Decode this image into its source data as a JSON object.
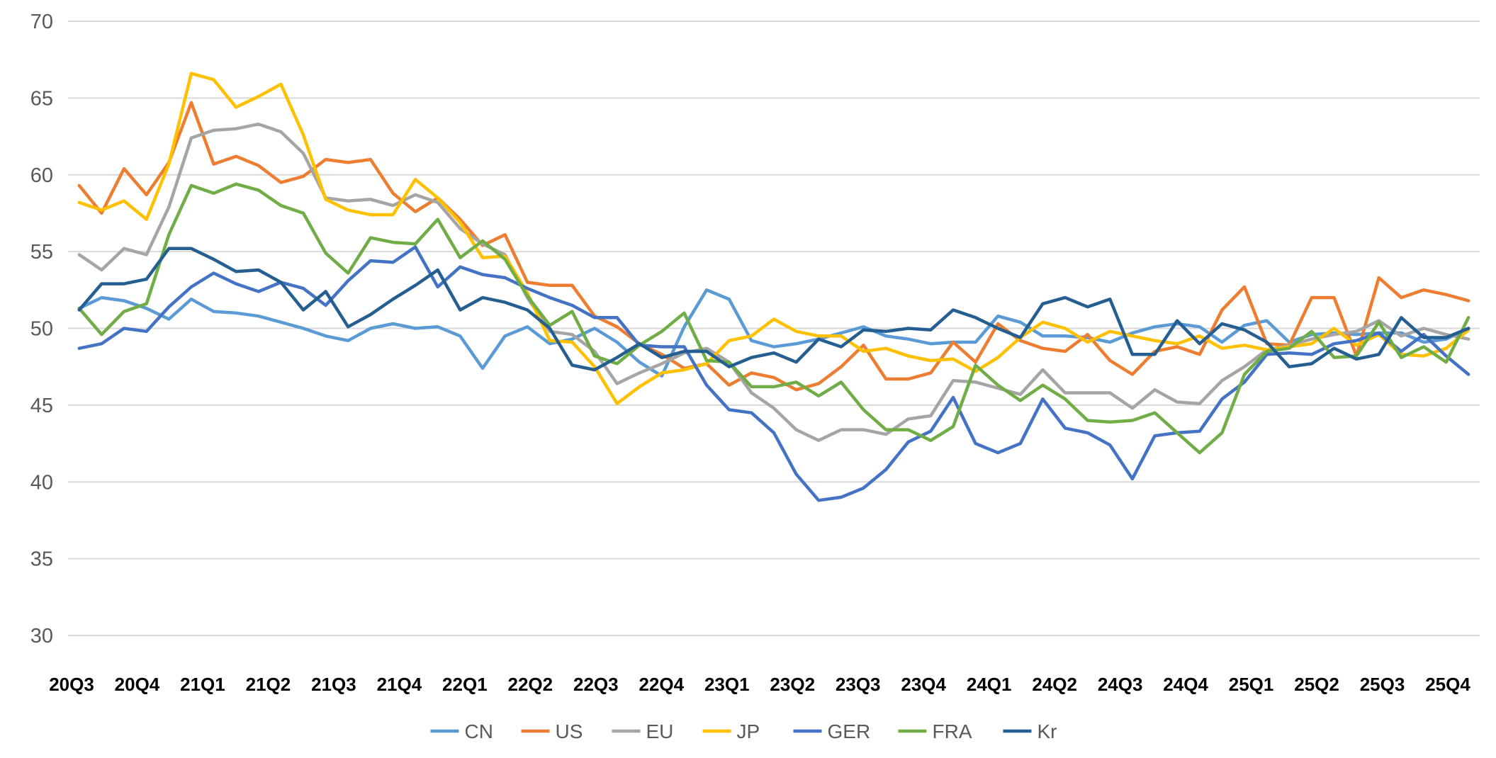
{
  "chart_data": {
    "type": "line",
    "title": "",
    "xlabel": "",
    "ylabel": "",
    "ylim": [
      30,
      70
    ],
    "yticks": [
      30,
      35,
      40,
      45,
      50,
      55,
      60,
      65,
      70
    ],
    "grid": true,
    "legend_position": "bottom",
    "x_tick_labels": [
      "20Q3",
      "20Q4",
      "21Q1",
      "21Q2",
      "21Q3",
      "21Q4",
      "22Q1",
      "22Q2",
      "22Q3",
      "22Q4",
      "23Q1",
      "23Q2",
      "23Q3",
      "23Q4",
      "24Q1",
      "24Q2",
      "24Q3",
      "24Q4",
      "25Q1",
      "25Q2",
      "25Q3",
      "25Q4"
    ],
    "series": [
      {
        "name": "CN",
        "color": "#5B9BD5",
        "values": [
          51.3,
          52.0,
          51.8,
          51.3,
          50.6,
          51.9,
          51.1,
          51.0,
          50.8,
          50.4,
          50.0,
          49.5,
          49.2,
          50.0,
          50.3,
          50.0,
          50.1,
          49.5,
          47.4,
          49.5,
          50.1,
          49.0,
          49.3,
          50.0,
          49.1,
          47.8,
          46.9,
          50.1,
          52.5,
          51.9,
          49.2,
          48.8,
          49.0,
          49.3,
          49.7,
          50.1,
          49.5,
          49.3,
          49.0,
          49.1,
          49.1,
          50.8,
          50.4,
          49.5,
          49.5,
          49.4,
          49.1,
          49.7,
          50.1,
          50.3,
          50.1,
          49.1,
          50.2,
          50.5,
          49.1,
          49.6,
          49.7,
          49.6,
          49.7,
          49.7,
          49.1,
          49.3,
          50.0
        ]
      },
      {
        "name": "US",
        "color": "#ED7D31",
        "values": [
          59.3,
          57.5,
          60.4,
          58.7,
          60.8,
          64.7,
          60.7,
          61.2,
          60.6,
          59.5,
          59.9,
          61.0,
          60.8,
          61.0,
          58.8,
          57.6,
          58.5,
          57.1,
          55.4,
          56.1,
          53.0,
          52.8,
          52.8,
          50.8,
          50.1,
          49.0,
          48.3,
          47.4,
          47.7,
          46.3,
          47.1,
          46.8,
          46.0,
          46.4,
          47.5,
          48.9,
          46.7,
          46.7,
          47.1,
          49.1,
          47.8,
          50.3,
          49.2,
          48.7,
          48.5,
          49.6,
          47.9,
          47.0,
          48.5,
          48.8,
          48.3,
          51.2,
          52.7,
          49.0,
          48.9,
          52.0,
          52.0,
          48.2,
          53.3,
          52.0,
          52.5,
          52.2,
          51.8
        ]
      },
      {
        "name": "EU",
        "color": "#A5A5A5",
        "values": [
          54.8,
          53.8,
          55.2,
          54.8,
          57.9,
          62.4,
          62.9,
          63.0,
          63.3,
          62.8,
          61.4,
          58.5,
          58.3,
          58.4,
          58.0,
          58.7,
          58.2,
          56.5,
          55.5,
          54.8,
          52.0,
          49.8,
          49.6,
          48.5,
          46.4,
          47.1,
          47.7,
          48.4,
          48.7,
          47.8,
          45.8,
          44.8,
          43.4,
          42.7,
          43.4,
          43.4,
          43.1,
          44.1,
          44.3,
          46.6,
          46.5,
          46.1,
          45.7,
          47.3,
          45.8,
          45.8,
          45.8,
          44.8,
          46.0,
          45.2,
          45.1,
          46.6,
          47.5,
          48.6,
          48.9,
          49.3,
          49.6,
          49.8,
          50.5,
          49.5,
          50.0,
          49.6,
          49.3
        ]
      },
      {
        "name": "JP",
        "color": "#FFC000",
        "values": [
          58.2,
          57.7,
          58.3,
          57.1,
          60.7,
          66.6,
          66.2,
          64.4,
          65.1,
          65.9,
          62.6,
          58.4,
          57.7,
          57.4,
          57.4,
          59.7,
          58.5,
          56.9,
          54.6,
          54.7,
          52.3,
          49.2,
          49.1,
          47.5,
          45.1,
          46.2,
          47.1,
          47.3,
          47.7,
          49.2,
          49.5,
          50.6,
          49.8,
          49.5,
          49.5,
          48.5,
          48.7,
          48.2,
          47.9,
          48.0,
          47.2,
          48.1,
          49.4,
          50.4,
          50.0,
          49.1,
          49.8,
          49.5,
          49.2,
          49.0,
          49.5,
          48.7,
          48.9,
          48.6,
          48.8,
          49.0,
          50.0,
          48.9,
          49.6,
          48.3,
          48.2,
          48.7,
          49.9
        ]
      },
      {
        "name": "GER",
        "color": "#4472C4",
        "values": [
          48.7,
          49.0,
          50.0,
          49.8,
          51.4,
          52.7,
          53.6,
          52.9,
          52.4,
          53.0,
          52.6,
          51.5,
          53.1,
          54.4,
          54.3,
          55.3,
          52.7,
          54.0,
          53.5,
          53.3,
          52.6,
          52.0,
          51.5,
          50.7,
          50.7,
          48.9,
          48.8,
          48.8,
          46.3,
          44.7,
          44.5,
          43.2,
          40.5,
          38.8,
          39.0,
          39.6,
          40.8,
          42.6,
          43.3,
          45.5,
          42.5,
          41.9,
          42.5,
          45.4,
          43.5,
          43.2,
          42.4,
          40.2,
          43.0,
          43.2,
          43.3,
          45.4,
          46.5,
          48.3,
          48.4,
          48.3,
          49.0,
          49.2,
          49.7,
          48.5,
          49.6,
          48.2,
          47.0
        ]
      },
      {
        "name": "FRA",
        "color": "#70AD47",
        "values": [
          51.3,
          49.6,
          51.1,
          51.6,
          56.1,
          59.3,
          58.8,
          59.4,
          59.0,
          58.0,
          57.5,
          54.9,
          53.6,
          55.9,
          55.6,
          55.5,
          57.1,
          54.6,
          55.7,
          54.5,
          52.1,
          50.2,
          51.1,
          48.2,
          47.7,
          48.9,
          49.8,
          51.0,
          47.9,
          47.8,
          46.2,
          46.2,
          46.5,
          45.6,
          46.5,
          44.7,
          43.4,
          43.4,
          42.7,
          43.6,
          47.6,
          46.3,
          45.3,
          46.3,
          45.4,
          44.0,
          43.9,
          44.0,
          44.5,
          43.2,
          41.9,
          43.2,
          47.0,
          48.5,
          48.7,
          49.8,
          48.1,
          48.2,
          50.4,
          48.1,
          48.8,
          47.8,
          50.7
        ]
      },
      {
        "name": "Kr",
        "color": "#255E91",
        "values": [
          51.2,
          52.9,
          52.9,
          53.2,
          55.2,
          55.2,
          54.5,
          53.7,
          53.8,
          53.0,
          51.2,
          52.4,
          50.1,
          50.9,
          51.9,
          52.8,
          53.8,
          51.2,
          52.0,
          51.7,
          51.2,
          50.0,
          47.6,
          47.3,
          48.1,
          49.0,
          48.1,
          48.5,
          48.5,
          47.5,
          48.1,
          48.4,
          47.8,
          49.3,
          48.8,
          49.9,
          49.8,
          50.0,
          49.9,
          51.2,
          50.7,
          50.0,
          49.4,
          51.6,
          52.0,
          51.4,
          51.9,
          48.3,
          48.3,
          50.5,
          49.0,
          50.3,
          49.9,
          49.1,
          47.5,
          47.7,
          48.7,
          48.0,
          48.3,
          50.7,
          49.4,
          49.4,
          50.0
        ]
      }
    ]
  }
}
